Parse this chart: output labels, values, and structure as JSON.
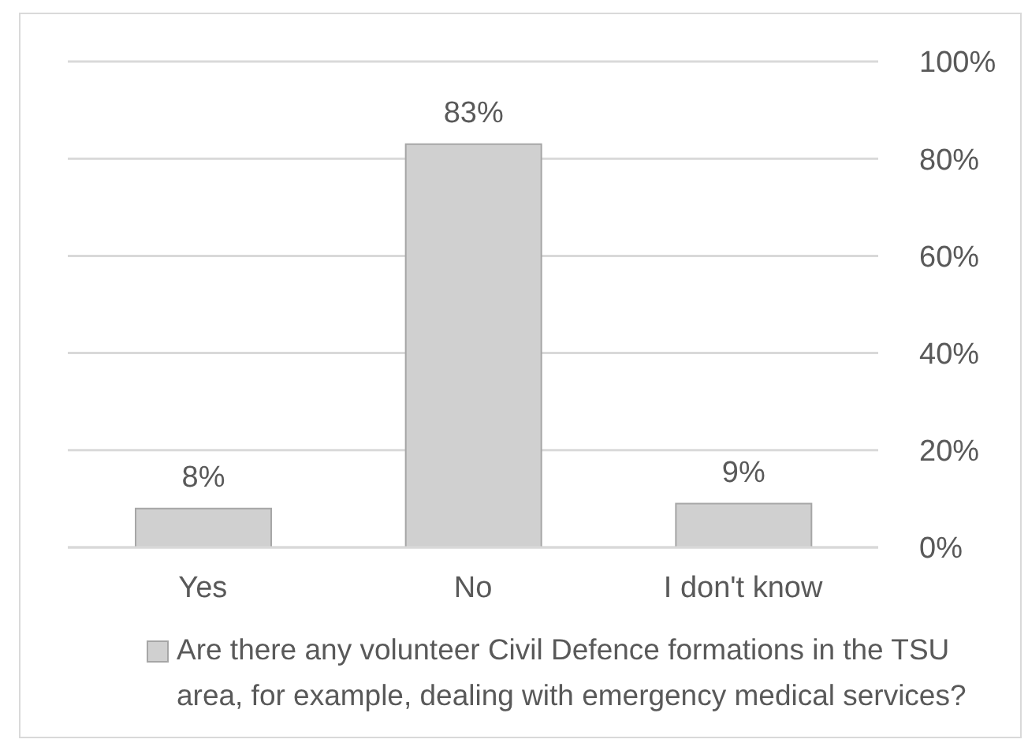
{
  "chart_data": {
    "type": "bar",
    "categories": [
      "Yes",
      "No",
      "I don't know"
    ],
    "series": [
      {
        "name": "Are there any volunteer Civil Defence formations in the TSU area, for example, dealing with emergency medical services?",
        "color": "#d0d0d0",
        "values": [
          8,
          83,
          9
        ],
        "value_labels": [
          "8%",
          "83%",
          "9%"
        ]
      }
    ],
    "ylim": [
      0,
      100
    ],
    "yticks": [
      {
        "value": 0,
        "label": "0%"
      },
      {
        "value": 20,
        "label": "20%"
      },
      {
        "value": 40,
        "label": "40%"
      },
      {
        "value": 60,
        "label": "60%"
      },
      {
        "value": 80,
        "label": "80%"
      },
      {
        "value": 100,
        "label": "100%"
      }
    ],
    "grid": "y",
    "legend": "bottom"
  }
}
